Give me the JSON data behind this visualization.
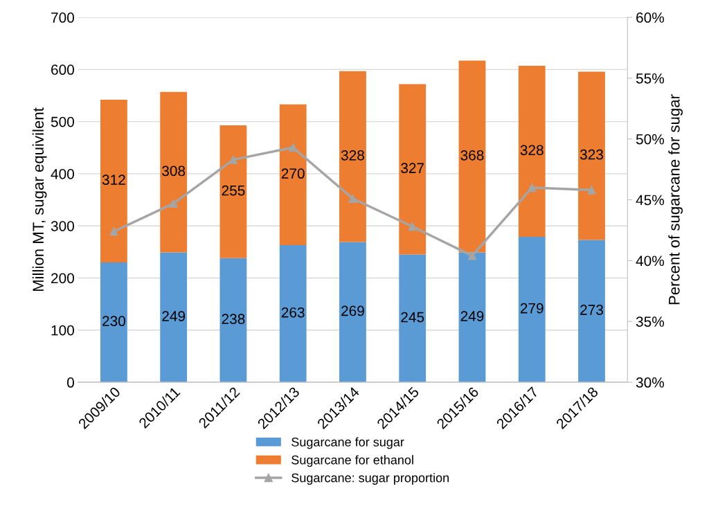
{
  "chart_data": {
    "type": "bar",
    "stacked": true,
    "ylabel": "Million MT, sugar equivilent",
    "y2label": "Percent of sugarcane for sugar",
    "categories": [
      "2009/10",
      "2010/11",
      "2011/12",
      "2012/13",
      "2013/14",
      "2014/15",
      "2015/16",
      "2016/17",
      "2017/18"
    ],
    "series": [
      {
        "name": "Sugarcane for sugar",
        "color": "#5b9bd5",
        "values": [
          230,
          249,
          238,
          263,
          269,
          245,
          249,
          279,
          273
        ],
        "value_labels": [
          "230",
          "249",
          "238",
          "263",
          "269",
          "245",
          "249",
          "279",
          "273"
        ]
      },
      {
        "name": "Sugarcane for ethanol",
        "color": "#ed7d31",
        "values": [
          312,
          308,
          255,
          270,
          328,
          327,
          368,
          328,
          323
        ],
        "value_labels": [
          "312",
          "308",
          "255",
          "270",
          "328",
          "327",
          "368",
          "328",
          "323"
        ]
      },
      {
        "name": "Sugarcane: sugar proportion",
        "type": "line",
        "axis": "y2",
        "color": "#a5a5a5",
        "marker": "triangle",
        "line_style": "solid",
        "values": [
          42.4,
          44.7,
          48.3,
          49.3,
          45.1,
          42.8,
          40.4,
          46.0,
          45.8
        ]
      }
    ],
    "ylim": [
      0,
      700
    ],
    "yticks": [
      0,
      100,
      200,
      300,
      400,
      500,
      600,
      700
    ],
    "y2lim": [
      30,
      60
    ],
    "y2ticks": [
      {
        "value": 30,
        "label": "30%"
      },
      {
        "value": 35,
        "label": "35%"
      },
      {
        "value": 40,
        "label": "40%"
      },
      {
        "value": 45,
        "label": "45%"
      },
      {
        "value": 50,
        "label": "50%"
      },
      {
        "value": 55,
        "label": "55%"
      },
      {
        "value": 60,
        "label": "60%"
      }
    ],
    "grid": "y",
    "legend": "bottom"
  }
}
